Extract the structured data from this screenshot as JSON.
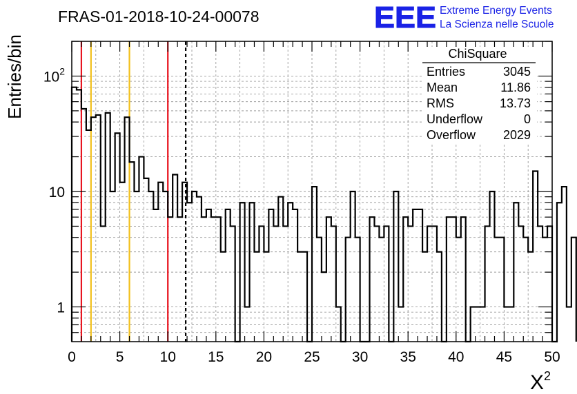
{
  "chart_data": {
    "type": "histogram",
    "title": "FRAS-01-2018-10-24-00078",
    "xlabel": "X",
    "xlabel_superscript": "2",
    "ylabel": "Entries/bin",
    "xlim": [
      0,
      50
    ],
    "ylim": [
      0.5,
      200
    ],
    "yscale": "log",
    "grid": true,
    "bin_width": 0.5,
    "x_ticks": [
      "0",
      "5",
      "10",
      "15",
      "20",
      "25",
      "30",
      "35",
      "40",
      "45",
      "50"
    ],
    "y_ticks": [
      {
        "value": 1,
        "base": "1",
        "exp": ""
      },
      {
        "value": 10,
        "base": "10",
        "exp": ""
      },
      {
        "value": 100,
        "base": "10",
        "exp": "2"
      }
    ],
    "counts": [
      80,
      76,
      52,
      34,
      44,
      46,
      5,
      48,
      10,
      32,
      12,
      44,
      18,
      10,
      20,
      13,
      10,
      7,
      12,
      10,
      6,
      14,
      6,
      12,
      8,
      10,
      9,
      6,
      7,
      6,
      6,
      3,
      7,
      5,
      0,
      8,
      1,
      8,
      3,
      5,
      3,
      7,
      5,
      9,
      5,
      8,
      7,
      3,
      3,
      0,
      11,
      4,
      2,
      6,
      5,
      1,
      0,
      4,
      10,
      4,
      0,
      0,
      6,
      5,
      4,
      5,
      0,
      10,
      1,
      6,
      5,
      7,
      7,
      3,
      5,
      5,
      3,
      0,
      6,
      6,
      4,
      6,
      0,
      1,
      1,
      1,
      5,
      10,
      4,
      4,
      1,
      1,
      8,
      5,
      4,
      3,
      15,
      5,
      4,
      5,
      0,
      8,
      11,
      1,
      4
    ]
  },
  "reference_lines": [
    {
      "x": 1,
      "color": "#e8141f",
      "style": "solid"
    },
    {
      "x": 2,
      "color": "#f2c01c",
      "style": "solid"
    },
    {
      "x": 6,
      "color": "#f2c01c",
      "style": "solid"
    },
    {
      "x": 10,
      "color": "#e8141f",
      "style": "solid"
    },
    {
      "x": 11.86,
      "color": "#000000",
      "style": "dashed"
    }
  ],
  "stats_box": {
    "title": "ChiSquare",
    "rows": [
      {
        "label": "Entries",
        "value": "3045"
      },
      {
        "label": "Mean",
        "value": "11.86"
      },
      {
        "label": "RMS",
        "value": "13.73"
      },
      {
        "label": "Underflow",
        "value": "0"
      },
      {
        "label": "Overflow",
        "value": "2029"
      }
    ]
  },
  "logo": {
    "acronym": "EEE",
    "line1": "Extreme Energy Events",
    "line2": "La Scienza nelle Scuole",
    "color": "#1a22e6"
  }
}
